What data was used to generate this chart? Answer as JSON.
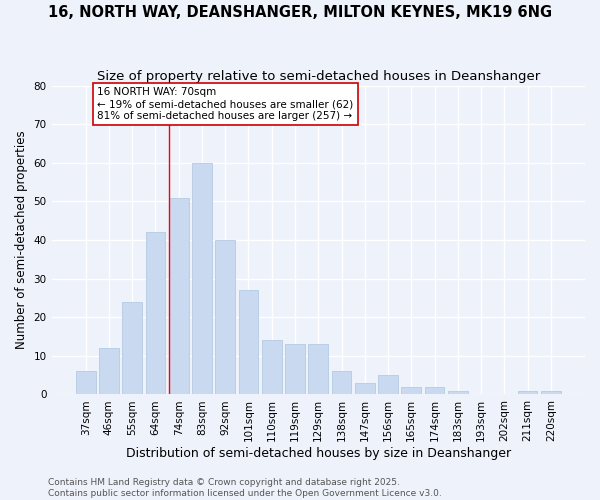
{
  "title_line1": "16, NORTH WAY, DEANSHANGER, MILTON KEYNES, MK19 6NG",
  "title_line2": "Size of property relative to semi-detached houses in Deanshanger",
  "xlabel": "Distribution of semi-detached houses by size in Deanshanger",
  "ylabel": "Number of semi-detached properties",
  "categories": [
    "37sqm",
    "46sqm",
    "55sqm",
    "64sqm",
    "74sqm",
    "83sqm",
    "92sqm",
    "101sqm",
    "110sqm",
    "119sqm",
    "129sqm",
    "138sqm",
    "147sqm",
    "156sqm",
    "165sqm",
    "174sqm",
    "183sqm",
    "193sqm",
    "202sqm",
    "211sqm",
    "220sqm"
  ],
  "values": [
    6,
    12,
    24,
    42,
    51,
    60,
    40,
    27,
    14,
    13,
    13,
    6,
    3,
    5,
    2,
    2,
    1,
    0,
    0,
    1,
    1
  ],
  "bar_color": "#c9d9ef",
  "bar_edge_color": "#adc4e0",
  "background_color": "#eef2fb",
  "grid_color": "#ffffff",
  "annotation_box_text": "16 NORTH WAY: 70sqm\n← 19% of semi-detached houses are smaller (62)\n81% of semi-detached houses are larger (257) →",
  "annotation_box_color": "#ffffff",
  "annotation_box_edge_color": "#cc0000",
  "red_line_bin_index": 4,
  "ylim": [
    0,
    80
  ],
  "yticks": [
    0,
    10,
    20,
    30,
    40,
    50,
    60,
    70,
    80
  ],
  "footer_text": "Contains HM Land Registry data © Crown copyright and database right 2025.\nContains public sector information licensed under the Open Government Licence v3.0.",
  "title_fontsize": 10.5,
  "subtitle_fontsize": 9.5,
  "xlabel_fontsize": 9,
  "ylabel_fontsize": 8.5,
  "tick_fontsize": 7.5,
  "annotation_fontsize": 7.5,
  "footer_fontsize": 6.5
}
